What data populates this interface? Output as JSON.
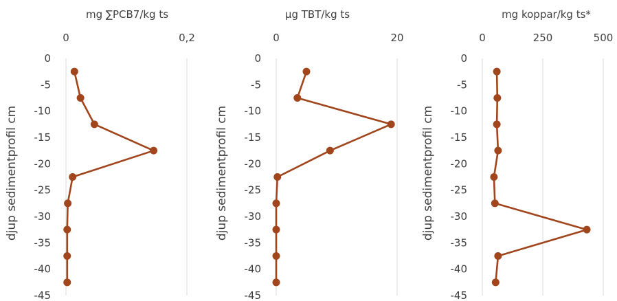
{
  "colors": {
    "series": "#a0451c",
    "grid": "#d9d9d9",
    "text": "#404040"
  },
  "chart_data": [
    {
      "type": "line",
      "title": "mg ∑PCB7/kg ts",
      "ylabel": "djup sedimentprofil cm",
      "xlabel": "",
      "xlim": [
        0,
        0.2
      ],
      "ylim": [
        -45,
        0
      ],
      "x_ticks": [
        "0",
        "0,2"
      ],
      "y_ticks": [
        "0",
        "-5",
        "-10",
        "-15",
        "-20",
        "-25",
        "-30",
        "-35",
        "-40",
        "-45"
      ],
      "grid": "vertical",
      "series": [
        {
          "x": [
            0.014,
            0.024,
            0.047,
            0.145,
            0.011,
            0.003,
            0.002,
            0.002,
            0.002
          ],
          "y": [
            -2.5,
            -7.5,
            -12.5,
            -17.5,
            -22.5,
            -27.5,
            -32.5,
            -37.5,
            -42.5
          ]
        }
      ]
    },
    {
      "type": "line",
      "title": "µg TBT/kg ts",
      "ylabel": "djup sedimentprofil cm",
      "xlabel": "",
      "xlim": [
        0,
        20
      ],
      "ylim": [
        -45,
        0
      ],
      "x_ticks": [
        "0",
        "20"
      ],
      "y_ticks": [
        "0",
        "-5",
        "-10",
        "-15",
        "-20",
        "-25",
        "-30",
        "-35",
        "-40",
        "-45"
      ],
      "grid": "vertical",
      "series": [
        {
          "x": [
            5.0,
            3.5,
            19.0,
            8.9,
            0.2,
            0.0,
            0.0,
            0.0,
            0.0
          ],
          "y": [
            -2.5,
            -7.5,
            -12.5,
            -17.5,
            -22.5,
            -27.5,
            -32.5,
            -37.5,
            -42.5
          ]
        }
      ]
    },
    {
      "type": "line",
      "title": "mg koppar/kg ts*",
      "ylabel": "djup sedimentprofil cm",
      "xlabel": "",
      "xlim": [
        0,
        500
      ],
      "ylim": [
        -45,
        0
      ],
      "x_ticks": [
        "0",
        "250",
        "500"
      ],
      "y_ticks": [
        "0",
        "-5",
        "-10",
        "-15",
        "-20",
        "-25",
        "-30",
        "-35",
        "-40",
        "-45"
      ],
      "grid": "vertical",
      "series": [
        {
          "x": [
            60,
            62,
            60,
            65,
            48,
            52,
            432,
            65,
            55
          ],
          "y": [
            -2.5,
            -7.5,
            -12.5,
            -17.5,
            -22.5,
            -27.5,
            -32.5,
            -37.5,
            -42.5
          ]
        }
      ]
    }
  ]
}
